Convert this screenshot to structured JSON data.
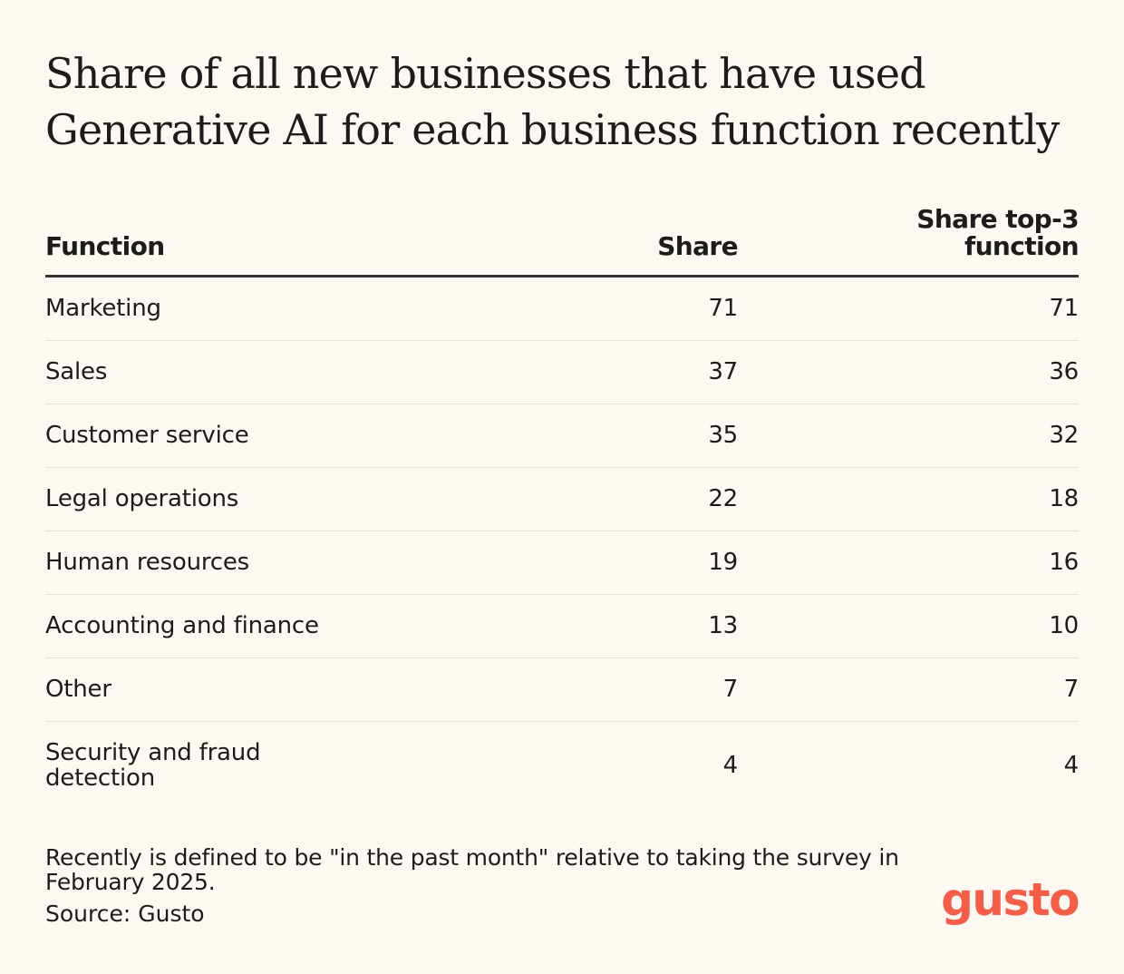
{
  "chart_data": {
    "type": "table",
    "title": "Share of all new businesses that have used Generative AI for each business function recently",
    "columns": [
      "Function",
      "Share",
      "Share top-3 function"
    ],
    "rows": [
      {
        "function": "Marketing",
        "share": "71",
        "share_top3": "71"
      },
      {
        "function": "Sales",
        "share": "37",
        "share_top3": "36"
      },
      {
        "function": "Customer service",
        "share": "35",
        "share_top3": "32"
      },
      {
        "function": "Legal operations",
        "share": "22",
        "share_top3": "18"
      },
      {
        "function": "Human resources",
        "share": "19",
        "share_top3": "16"
      },
      {
        "function": "Accounting and finance",
        "share": "13",
        "share_top3": "10"
      },
      {
        "function": "Other",
        "share": "7",
        "share_top3": "7"
      },
      {
        "function": "Security and fraud detection",
        "share": "4",
        "share_top3": "4"
      }
    ]
  },
  "footer": {
    "note": "Recently is defined to be \"in the past month\" relative to taking the survey in February 2025.",
    "source": "Source: Gusto",
    "logo_text": "gusto",
    "logo_color": "#f45d48"
  }
}
